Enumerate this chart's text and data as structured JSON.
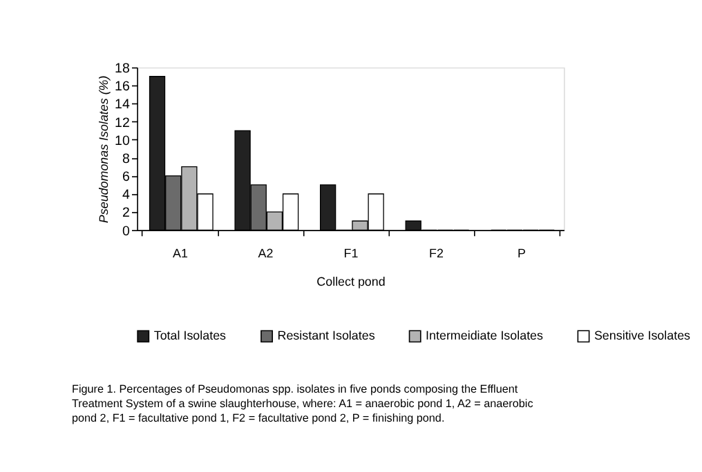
{
  "chart_data": {
    "type": "bar",
    "xlabel": "Collect pond",
    "ylabel": "Pseudomonas Isolates (%)",
    "categories": [
      "A1",
      "A2",
      "F1",
      "F2",
      "P"
    ],
    "series": [
      {
        "name": "Total Isolates",
        "color": "#222222",
        "values": [
          17,
          11,
          5,
          1,
          0
        ]
      },
      {
        "name": "Resistant Isolates",
        "color": "#6b6b6b",
        "values": [
          6,
          5,
          0,
          0,
          0
        ]
      },
      {
        "name": "Intermeidiate Isolates",
        "color": "#b3b3b3",
        "values": [
          7,
          2,
          1,
          0,
          0
        ]
      },
      {
        "name": "Sensitive Isolates",
        "color": "#ffffff",
        "values": [
          4,
          4,
          4,
          0,
          0
        ]
      }
    ],
    "ylim": [
      0,
      18
    ],
    "yticks": [
      0,
      2,
      4,
      6,
      8,
      10,
      12,
      14,
      16,
      18
    ],
    "grid": false,
    "legend": "bottom",
    "annotations": [
      "Figure 1. Percentages of Pseudomonas spp. isolates in five ponds composing the Effluent Treatment System of a swine slaughterhouse, where: A1 = anaerobic pond 1, A2 = anaerobic pond 2, F1 = facultative pond 1, F2 = facultative pond 2, P = finishing pond."
    ]
  }
}
